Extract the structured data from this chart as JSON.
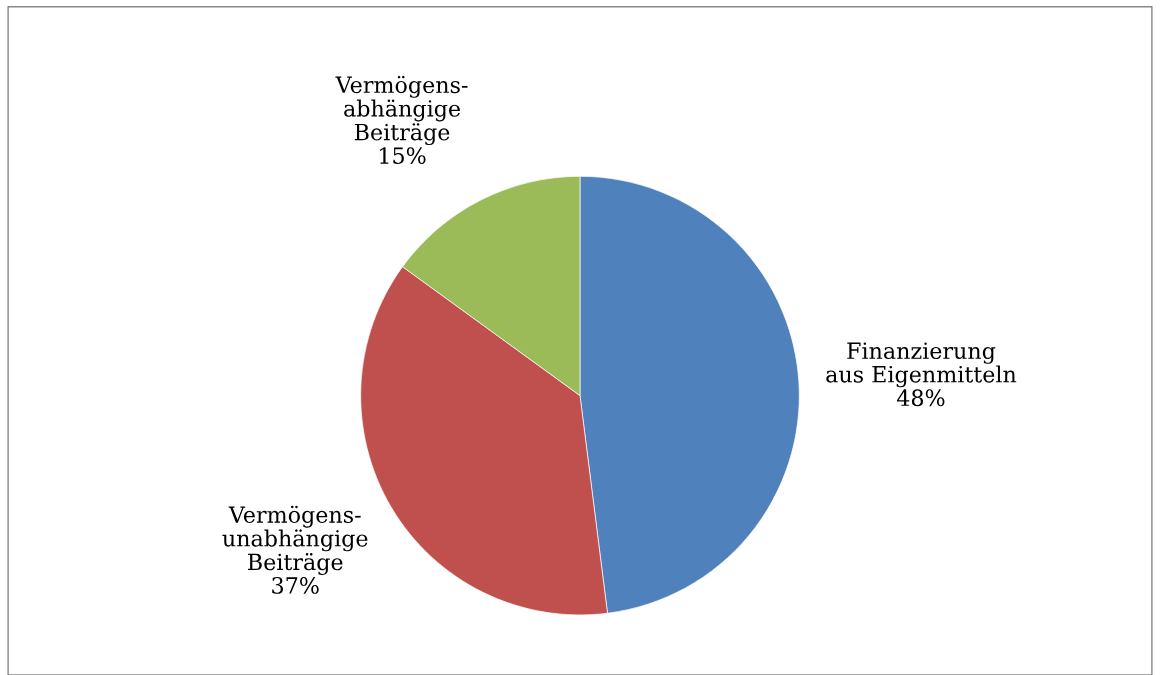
{
  "chart_data": {
    "type": "pie",
    "categories": [
      "Finanzierung\naus Eigenmitteln",
      "Vermögens-\nunabhängige\nBeiträge",
      "Vermögens-\nabhängige\nBeiträge"
    ],
    "values": [
      48,
      37,
      15
    ],
    "value_labels": [
      "48%",
      "37%",
      "15%"
    ],
    "colors": [
      "#4f81bd",
      "#c0504d",
      "#9bbb59"
    ],
    "legend": false
  }
}
